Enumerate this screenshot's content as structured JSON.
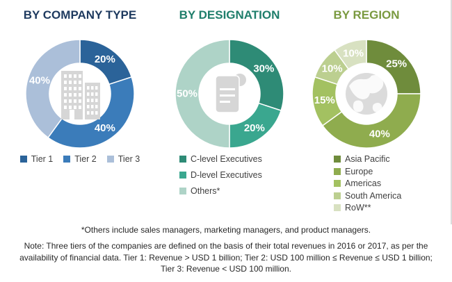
{
  "figure": {
    "background": "#FFFFFF",
    "icon_color": "#D6D6D6",
    "percent_label_color": "#FFFFFF"
  },
  "chart_data": [
    {
      "type": "pie",
      "subtype": "donut",
      "title": "BY COMPANY TYPE",
      "title_color": "#1E3A5F",
      "center_icon": "building-icon",
      "legend_position": "bottom-horizontal",
      "categories": [
        "Tier 1",
        "Tier 2",
        "Tier 3"
      ],
      "values": [
        20,
        40,
        40
      ],
      "labels": [
        "20%",
        "40%",
        "40%"
      ],
      "colors": [
        "#2B6399",
        "#3B7CBA",
        "#ABBFD9"
      ],
      "start_angle_deg": 0,
      "direction": "clockwise"
    },
    {
      "type": "pie",
      "subtype": "donut",
      "title": "BY DESIGNATION",
      "title_color": "#1F7E6B",
      "center_icon": "document-icon",
      "legend_position": "bottom-vertical",
      "categories": [
        "C-level Executives",
        "D-level Executives",
        "Others*"
      ],
      "values": [
        30,
        20,
        50
      ],
      "labels": [
        "30%",
        "20%",
        "50%"
      ],
      "colors": [
        "#2E8B76",
        "#3AA78F",
        "#AED3C7"
      ],
      "start_angle_deg": 0,
      "direction": "clockwise"
    },
    {
      "type": "pie",
      "subtype": "donut",
      "title": "BY REGION",
      "title_color": "#7A9A40",
      "center_icon": "globe-icon",
      "legend_position": "bottom-vertical",
      "categories": [
        "Asia Pacific",
        "Europe",
        "Americas",
        "South America",
        "RoW**"
      ],
      "values": [
        25,
        40,
        15,
        10,
        10
      ],
      "labels": [
        "25%",
        "40%",
        "15%",
        "10%",
        "10%"
      ],
      "colors": [
        "#6F8C3C",
        "#8FAC4E",
        "#A3C161",
        "#BCCF90",
        "#D8E1C1"
      ],
      "start_angle_deg": 0,
      "direction": "clockwise"
    }
  ],
  "footnotes": {
    "others": "*Others include sales managers, marketing managers, and product managers.",
    "note": "Note: Three tiers of the companies are defined on the basis of their total revenues in 2016 or 2017, as per the availability of financial data. Tier 1: Revenue > USD 1 billion; Tier 2: USD 100 million ≤ Revenue ≤ USD 1 billion; Tier 3: Revenue < USD 100 million."
  }
}
